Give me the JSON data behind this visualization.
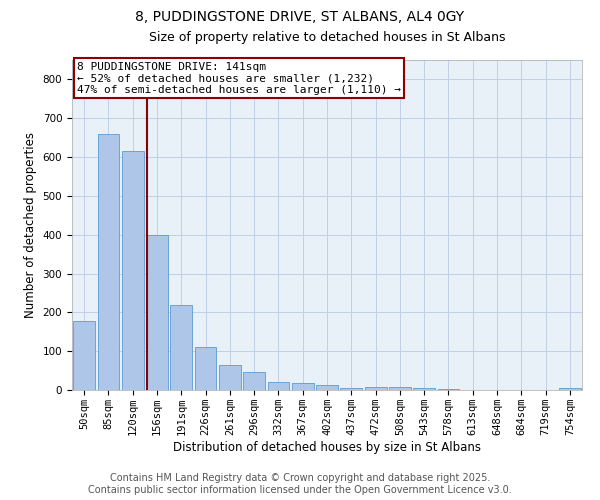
{
  "title": "8, PUDDINGSTONE DRIVE, ST ALBANS, AL4 0GY",
  "subtitle": "Size of property relative to detached houses in St Albans",
  "xlabel": "Distribution of detached houses by size in St Albans",
  "ylabel": "Number of detached properties",
  "categories": [
    "50sqm",
    "85sqm",
    "120sqm",
    "156sqm",
    "191sqm",
    "226sqm",
    "261sqm",
    "296sqm",
    "332sqm",
    "367sqm",
    "402sqm",
    "437sqm",
    "472sqm",
    "508sqm",
    "543sqm",
    "578sqm",
    "613sqm",
    "648sqm",
    "684sqm",
    "719sqm",
    "754sqm"
  ],
  "values": [
    178,
    660,
    615,
    400,
    218,
    112,
    65,
    47,
    20,
    17,
    13,
    5,
    7,
    8,
    6,
    3,
    0,
    0,
    0,
    0,
    5
  ],
  "bar_color": "#aec6e8",
  "bar_edge_color": "#5b9bd5",
  "vline_color": "#8b0000",
  "annotation_text": "8 PUDDINGSTONE DRIVE: 141sqm\n← 52% of detached houses are smaller (1,232)\n47% of semi-detached houses are larger (1,110) →",
  "annotation_box_color": "#8b0000",
  "ylim": [
    0,
    850
  ],
  "yticks": [
    0,
    100,
    200,
    300,
    400,
    500,
    600,
    700,
    800
  ],
  "footer_line1": "Contains HM Land Registry data © Crown copyright and database right 2025.",
  "footer_line2": "Contains public sector information licensed under the Open Government Licence v3.0.",
  "bg_color": "#ffffff",
  "grid_color": "#c0d0e8",
  "title_fontsize": 10,
  "subtitle_fontsize": 9,
  "axis_label_fontsize": 8.5,
  "tick_fontsize": 7.5,
  "footer_fontsize": 7,
  "ann_fontsize": 8
}
